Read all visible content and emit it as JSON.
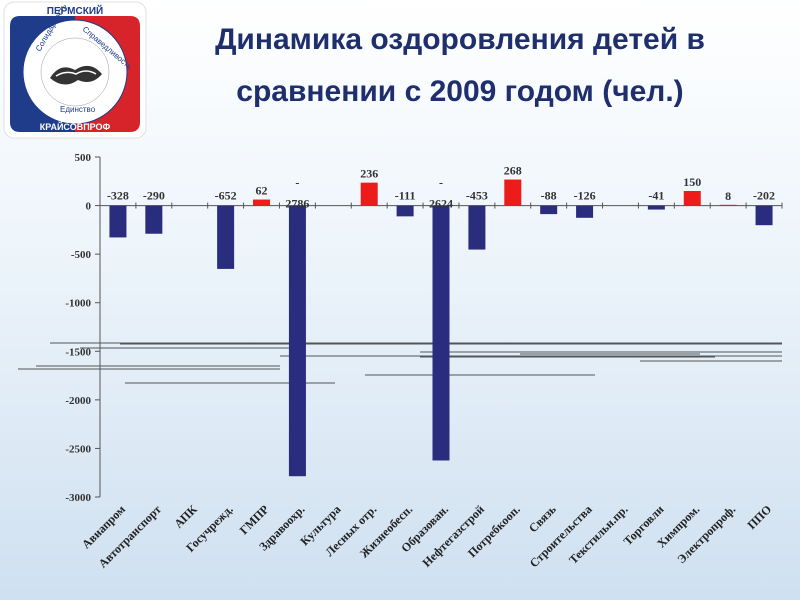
{
  "logo": {
    "top_text": "ПЕРМСКИЙ",
    "bottom_text": "КРАЙСОВПРОФ",
    "ring_words": [
      "Солидарность",
      "Справедливость",
      "Единство"
    ],
    "colors": {
      "blue": "#1f3c8a",
      "red": "#d6242a"
    }
  },
  "header": {
    "title_line1": "Динамика оздоровления детей в",
    "title_line2": "сравнении с 2009 годом (чел.)"
  },
  "colors": {
    "negative_bar": "#2a2c7e",
    "positive_bar": "#ee1b1b",
    "title": "#1f2f6e"
  },
  "chart_data": {
    "type": "bar",
    "title": "Динамика оздоровления детей в сравнении с 2009 годом (чел.)",
    "categories": [
      "Авиапром",
      "Автотранспорт",
      "АПК",
      "Госучрежд.",
      "ГМПР",
      "Здравоохр.",
      "Культура",
      "Лесных отр.",
      "Жизнеобесп.",
      "Образован.",
      "Нефтегазстрой",
      "Потребкооп.",
      "Связь",
      "Строительства",
      "Текстильн.пр.",
      "Торговли",
      "Химпром.",
      "Электропроф.",
      "ППО"
    ],
    "values": [
      -328,
      -290,
      null,
      -652,
      62,
      -2786,
      null,
      236,
      -111,
      -2624,
      -453,
      268,
      -88,
      -126,
      null,
      -41,
      150,
      8,
      -202
    ],
    "value_labels": [
      "-328",
      "-290",
      "",
      "-652",
      "62",
      "- 2786",
      "",
      "236",
      "-111",
      "- 2624",
      "-453",
      "268",
      "-88",
      "-126",
      "",
      "-41",
      "150",
      "8",
      "-202"
    ],
    "ylim": [
      -3000,
      500
    ],
    "yticks": [
      500,
      0,
      -500,
      -1000,
      -1500,
      -2000,
      -2500,
      -3000
    ],
    "ytick_labels": [
      "500",
      "0",
      "-500",
      "-1000",
      "-1500",
      "-2000",
      "-2500",
      "-3000"
    ],
    "grid": false,
    "legend": "none"
  }
}
